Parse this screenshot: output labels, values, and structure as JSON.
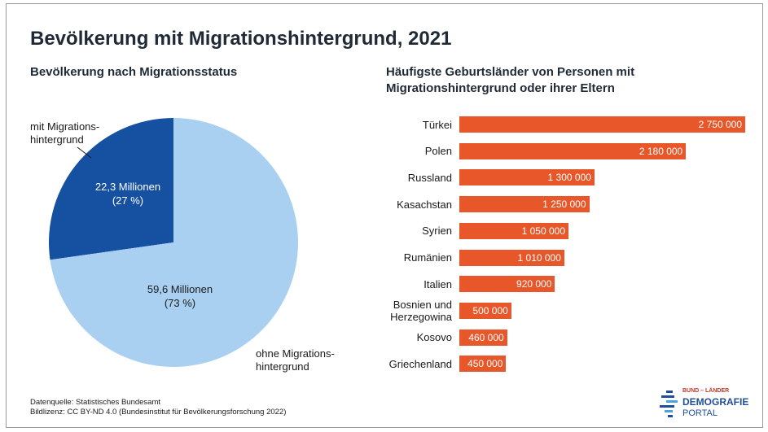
{
  "title": "Bevölkerung mit Migrationshintergrund, 2021",
  "left_subtitle": "Bevölkerung nach Migrationsstatus",
  "right_subtitle": "Häufigste Geburtsländer von Personen mit Migrationshintergrund oder ihrer Eltern",
  "colors": {
    "pie_dark": "#1650a0",
    "pie_light": "#a9d0f1",
    "bar": "#e8572a"
  },
  "chart_data": [
    {
      "type": "pie",
      "title": "Bevölkerung nach Migrationsstatus",
      "slices": [
        {
          "label": "mit Migrations-\nhintergrund",
          "value": 22.3,
          "percent": 27,
          "value_text": "22,3 Millionen",
          "percent_text": "(27 %)"
        },
        {
          "label": "ohne Migrations-\nhintergrund",
          "value": 59.6,
          "percent": 73,
          "value_text": "59,6 Millionen",
          "percent_text": "(73 %)"
        }
      ]
    },
    {
      "type": "bar",
      "orientation": "horizontal",
      "title": "Häufigste Geburtsländer von Personen mit Migrationshintergrund oder ihrer Eltern",
      "categories": [
        "Türkei",
        "Polen",
        "Russland",
        "Kasachstan",
        "Syrien",
        "Rumänien",
        "Italien",
        "Bosnien und\nHerzegowina",
        "Kosovo",
        "Griechenland"
      ],
      "values": [
        2750000,
        2180000,
        1300000,
        1250000,
        1050000,
        1010000,
        920000,
        500000,
        460000,
        450000
      ],
      "value_labels": [
        "2 750 000",
        "2 180 000",
        "1 300 000",
        "1 250 000",
        "1 050 000",
        "1 010 000",
        "920 000",
        "500 000",
        "460 000",
        "450 000"
      ],
      "xlim": [
        0,
        2750000
      ]
    }
  ],
  "footer": {
    "line1": "Datenquelle: Statistisches Bundesamt",
    "line2": "Bildlizenz: CC BY-ND 4.0 (Bundesinstitut für Bevölkerungsforschung 2022)"
  },
  "logo": {
    "top": "BUND – LÄNDER",
    "mid": "DEMOGRAFIE",
    "bot": "PORTAL"
  }
}
